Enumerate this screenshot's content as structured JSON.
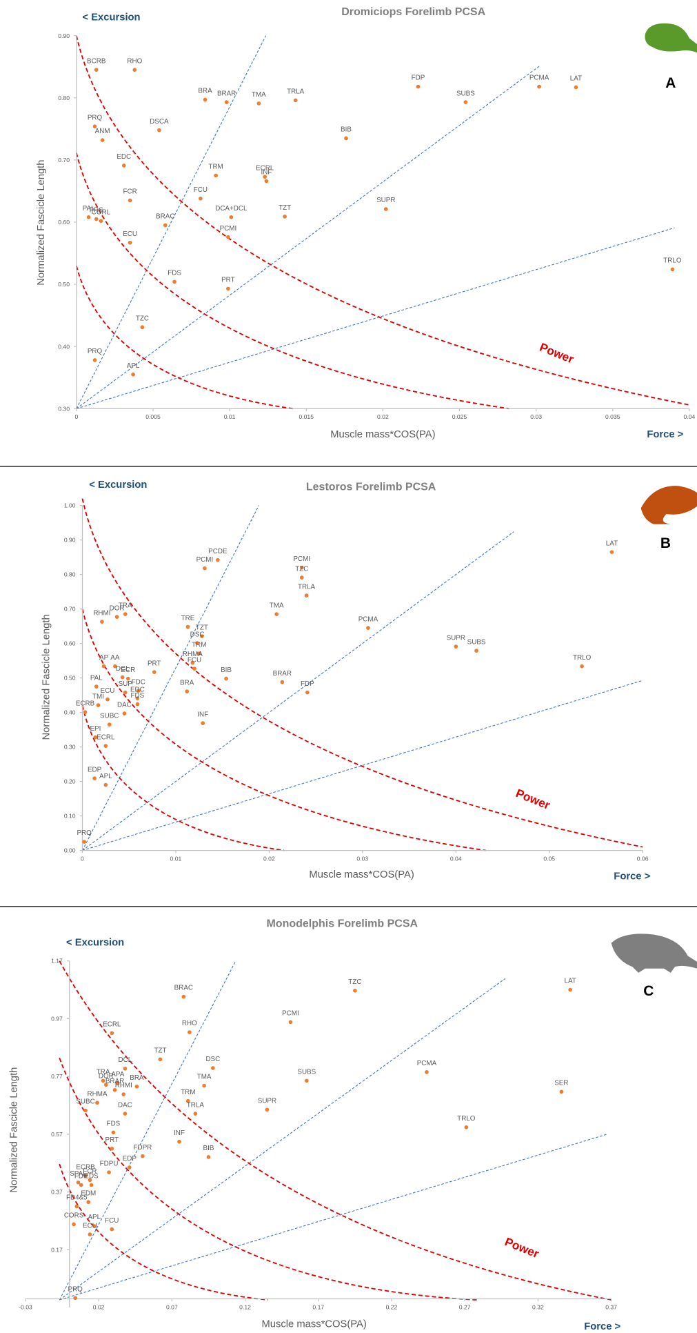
{
  "chart_data": [
    {
      "type": "scatter",
      "title": "Dromiciops Forelimb PCSA",
      "x_label": "Muscle mass*COS(PA)",
      "y_label": "Normalized Fascicle Length",
      "excursion_label": "< Excursion",
      "force_label": "Force >",
      "power_label": "Power",
      "panel_label": "A",
      "color": "#ed7d31",
      "xlim": [
        0,
        0.04
      ],
      "xticks": [
        0,
        0.005,
        0.01,
        0.015,
        0.02,
        0.025,
        0.03,
        0.035,
        0.04
      ],
      "ylim": [
        0.3,
        0.9
      ],
      "yticks": [
        {
          "value": 0.3,
          "label": "0.30"
        },
        {
          "value": 0.4,
          "label": "0.40"
        },
        {
          "value": 0.5,
          "label": "0.50"
        },
        {
          "value": 0.6,
          "label": "0.60"
        },
        {
          "value": 0.7,
          "label": "0.70"
        },
        {
          "value": 0.8,
          "label": "0.80"
        },
        {
          "value": 0.9,
          "label": "0.90"
        }
      ],
      "point_labels": [
        "BCRB",
        "RHO",
        "BRA",
        "BRAR",
        "TMA",
        "TRLA",
        "FDP",
        "SUBS",
        "PCMA",
        "LAT",
        "PRQ",
        "ANM",
        "DSCA",
        "BIB",
        "EDC",
        "TRM",
        "ECRL",
        "INF",
        "FCR",
        "FCU",
        "PAL",
        "PRS",
        "CORL",
        "BRAC",
        "DCA+DCL",
        "TZT",
        "SUPR",
        "ECU",
        "PCMI",
        "TRLO",
        "FDS",
        "PRT",
        "TZC",
        "PRQ",
        "APL"
      ],
      "x": [
        0.0013,
        0.0038,
        0.0084,
        0.0098,
        0.0119,
        0.0143,
        0.0223,
        0.0254,
        0.0302,
        0.0326,
        0.0012,
        0.0017,
        0.0054,
        0.0176,
        0.0031,
        0.0091,
        0.0123,
        0.0124,
        0.0035,
        0.0081,
        0.0008,
        0.0013,
        0.0016,
        0.0058,
        0.0101,
        0.0136,
        0.0202,
        0.0035,
        0.0099,
        0.0389,
        0.0064,
        0.0099,
        0.0043,
        0.0012,
        0.0037
      ],
      "values": [
        0.845,
        0.845,
        0.797,
        0.793,
        0.791,
        0.796,
        0.818,
        0.793,
        0.818,
        0.817,
        0.754,
        0.732,
        0.748,
        0.735,
        0.691,
        0.675,
        0.673,
        0.666,
        0.635,
        0.638,
        0.608,
        0.605,
        0.602,
        0.595,
        0.608,
        0.609,
        0.621,
        0.567,
        0.576,
        0.524,
        0.504,
        0.493,
        0.431,
        0.378,
        0.355
      ]
    },
    {
      "type": "scatter",
      "title": "Lestoros Forelimb PCSA",
      "x_label": "Muscle mass*COS(PA)",
      "y_label": "Normalized Fascicle Length",
      "excursion_label": "< Excursion",
      "force_label": "Force >",
      "power_label": "Power",
      "panel_label": "B",
      "color": "#ed7d31",
      "xlim": [
        0,
        0.06
      ],
      "xticks": [
        0,
        0.01,
        0.02,
        0.03,
        0.04,
        0.05,
        0.06
      ],
      "ylim": [
        0,
        1
      ],
      "yticks": [
        {
          "value": 0,
          "label": "0.00"
        },
        {
          "value": 0.1,
          "label": "0.10"
        },
        {
          "value": 0.2,
          "label": "0.20"
        },
        {
          "value": 0.3,
          "label": "0.30"
        },
        {
          "value": 0.4,
          "label": "0.40"
        },
        {
          "value": 0.5,
          "label": "0.50"
        },
        {
          "value": 0.6,
          "label": "0.60"
        },
        {
          "value": 0.7,
          "label": "0.70"
        },
        {
          "value": 0.8,
          "label": "0.80"
        },
        {
          "value": 0.9,
          "label": "0.90"
        },
        {
          "value": 1,
          "label": "1.00"
        }
      ],
      "point_labels": [
        "LAT",
        "PCDE",
        "PCMI",
        "PCMI",
        "TZC",
        "TRLA",
        "TMA",
        "PCMA",
        "RHMI",
        "TRA",
        "DOR",
        "TRE",
        "TZT",
        "DSC",
        "TRM",
        "RHMA",
        "SUPR",
        "SUBS",
        "TRLO",
        "AP",
        "AA",
        "PRT",
        "DCL",
        "ECR",
        "FCU",
        "BIB",
        "BRA",
        "PAL",
        "SUP",
        "FDC",
        "EDC",
        "FDS",
        "BRAR",
        "FDP",
        "ECU",
        "ECRB",
        "TMI",
        "DAC",
        "SUBC",
        "INF",
        "EPI",
        "ECRL",
        "EDP",
        "APL",
        "PRQ"
      ],
      "x": [
        0.0567,
        0.0145,
        0.0131,
        0.0235,
        0.0235,
        0.024,
        0.0208,
        0.0306,
        0.0021,
        0.0046,
        0.0037,
        0.0113,
        0.0128,
        0.0123,
        0.0125,
        0.0118,
        0.04,
        0.0422,
        0.0535,
        0.0023,
        0.0035,
        0.0077,
        0.0043,
        0.0049,
        0.012,
        0.0154,
        0.0112,
        0.0015,
        0.0046,
        0.006,
        0.0059,
        0.0059,
        0.0214,
        0.0241,
        0.0027,
        0.0003,
        0.0017,
        0.0045,
        0.0029,
        0.0129,
        0.0014,
        0.0025,
        0.0013,
        0.0025,
        0.0002
      ],
      "values": [
        0.865,
        0.842,
        0.818,
        0.82,
        0.791,
        0.739,
        0.685,
        0.645,
        0.663,
        0.685,
        0.677,
        0.648,
        0.621,
        0.601,
        0.571,
        0.544,
        0.591,
        0.579,
        0.534,
        0.534,
        0.534,
        0.517,
        0.502,
        0.498,
        0.527,
        0.498,
        0.461,
        0.475,
        0.458,
        0.463,
        0.441,
        0.424,
        0.488,
        0.458,
        0.438,
        0.401,
        0.421,
        0.397,
        0.365,
        0.369,
        0.328,
        0.303,
        0.209,
        0.19,
        0.025
      ]
    },
    {
      "type": "scatter",
      "title": "Monodelphis Forelimb PCSA",
      "x_label": "Muscle mass*COS(PA)",
      "y_label": "Normalized Fascicle Length",
      "excursion_label": "< Excursion",
      "force_label": "Force >",
      "power_label": "Power",
      "panel_label": "C",
      "color": "#ed7d31",
      "xlim": [
        -0.03,
        0.37
      ],
      "xticks": [
        -0.03,
        0.02,
        0.07,
        0.12,
        0.17,
        0.22,
        0.27,
        0.32,
        0.37
      ],
      "ylim": [
        -0.03,
        1.17
      ],
      "yticks": [
        0.17,
        0.37,
        0.57,
        0.77,
        0.97,
        1.17
      ],
      "point_labels": [
        "LAT",
        "TZC",
        "BRAC",
        "PCMI",
        "RHO",
        "ECRL",
        "TZT",
        "DCL",
        "DSC",
        "TRA",
        "DOR",
        "APA",
        "BRAR",
        "RHMI",
        "BRA",
        "TMA",
        "SUBS",
        "PCMA",
        "SER",
        "RHMA",
        "SUBC",
        "DAC",
        "TRM",
        "TRLA",
        "SUPR",
        "TRLO",
        "FDS",
        "PRT",
        "INF",
        "FDPR",
        "BIB",
        "EDP",
        "FDPU",
        "ECRB",
        "SPAL",
        "FCR",
        "FDP",
        "EDS",
        "EDM",
        "FD4&5",
        "CORS",
        "APL",
        "ECU",
        "FCU",
        "PRQ"
      ],
      "x": [
        0.342,
        0.195,
        0.078,
        0.151,
        0.082,
        0.029,
        0.062,
        0.038,
        0.098,
        0.023,
        0.025,
        0.033,
        0.031,
        0.037,
        0.046,
        0.092,
        0.162,
        0.244,
        0.336,
        0.019,
        0.011,
        0.038,
        0.081,
        0.086,
        0.135,
        0.271,
        0.03,
        0.029,
        0.075,
        0.05,
        0.095,
        0.041,
        0.027,
        0.011,
        0.006,
        0.014,
        0.008,
        0.015,
        0.013,
        0.005,
        0.003,
        0.017,
        0.014,
        0.029,
        0.004
      ],
      "values": [
        1.07,
        1.067,
        1.046,
        0.958,
        0.923,
        0.92,
        0.829,
        0.797,
        0.799,
        0.755,
        0.741,
        0.747,
        0.723,
        0.708,
        0.735,
        0.738,
        0.755,
        0.785,
        0.717,
        0.679,
        0.652,
        0.641,
        0.685,
        0.641,
        0.655,
        0.594,
        0.576,
        0.52,
        0.544,
        0.494,
        0.491,
        0.455,
        0.438,
        0.426,
        0.403,
        0.411,
        0.394,
        0.394,
        0.335,
        0.32,
        0.258,
        0.252,
        0.223,
        0.241,
        0.003
      ]
    }
  ]
}
